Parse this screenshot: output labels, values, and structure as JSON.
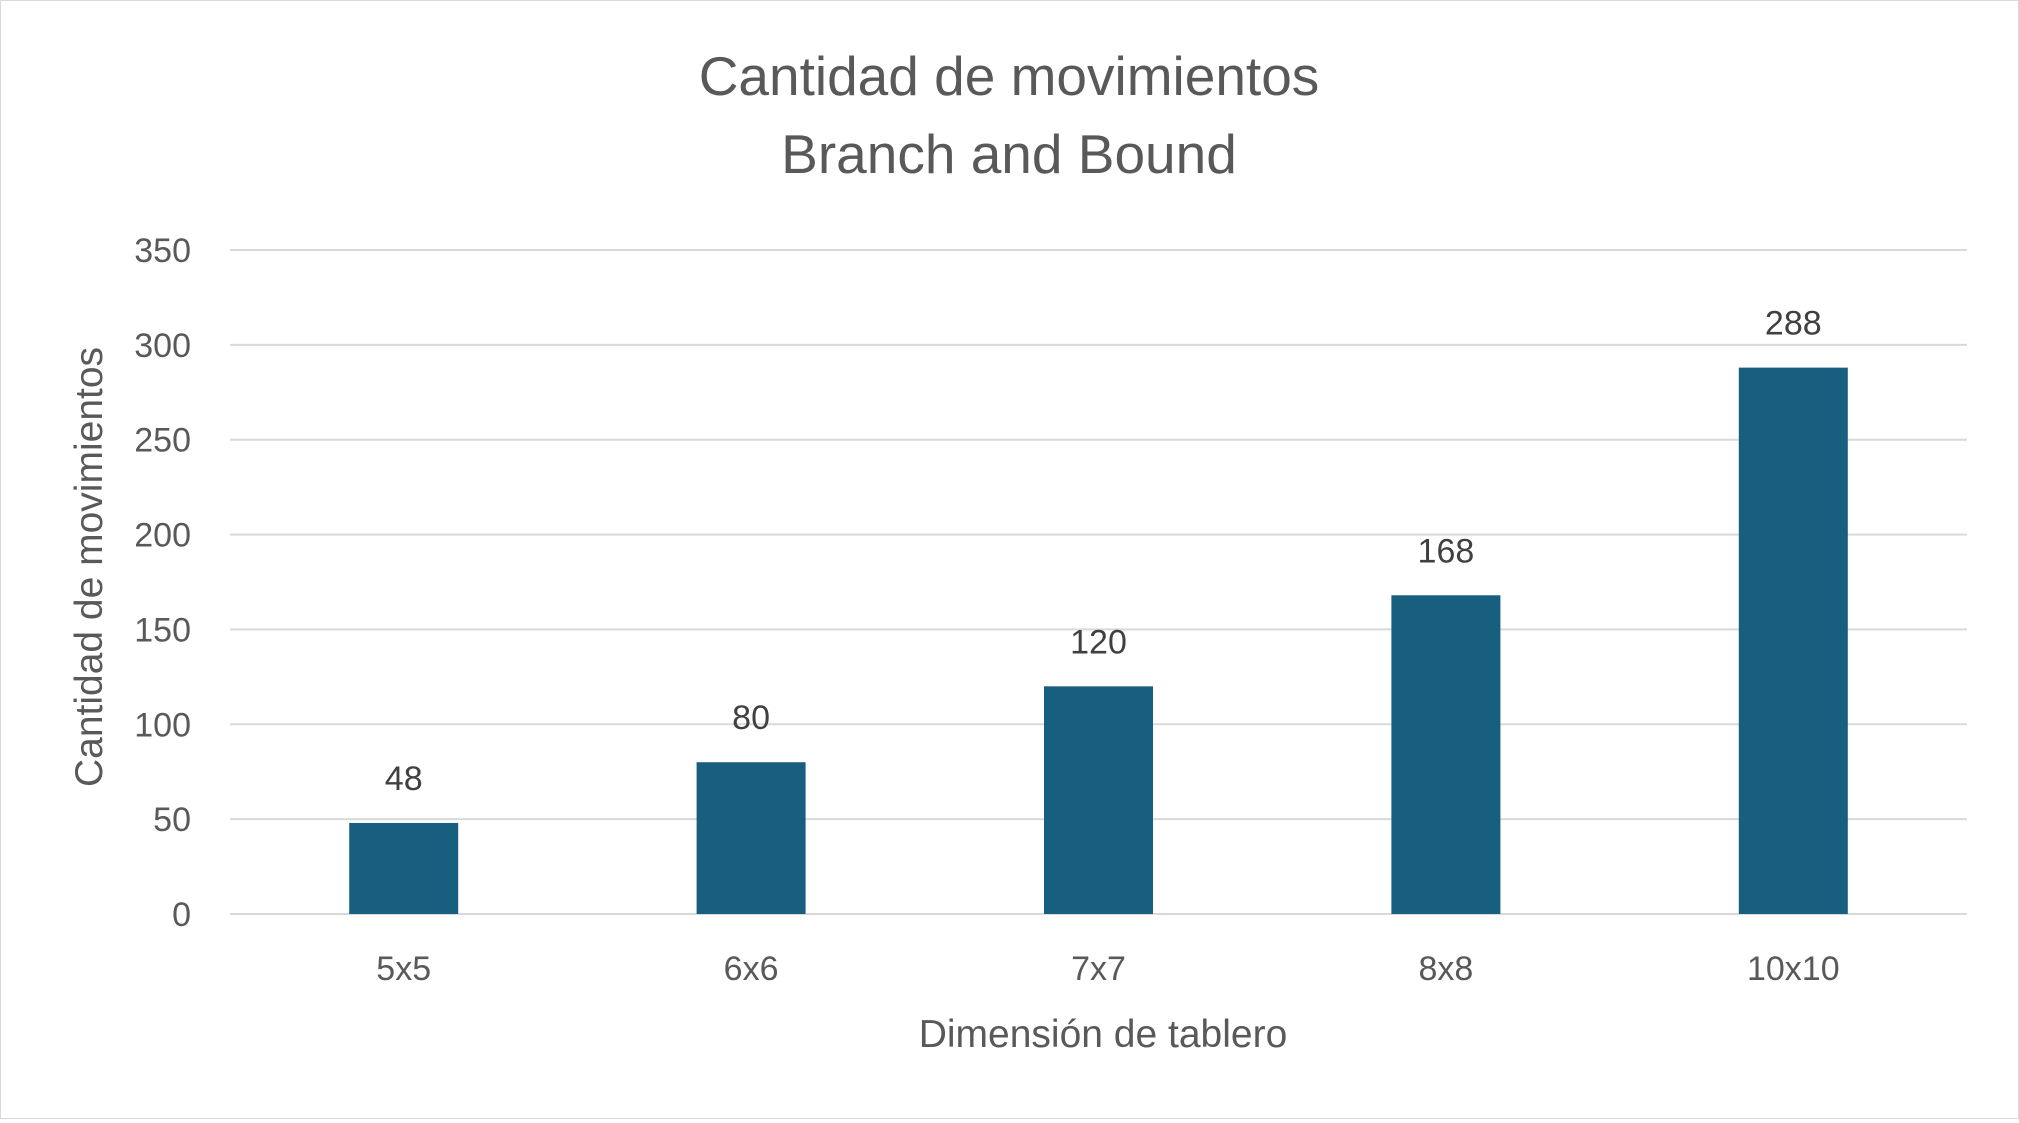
{
  "chart_data": {
    "type": "bar",
    "title": [
      "Cantidad de movimientos",
      "Branch and Bound"
    ],
    "xlabel": "Dimensión de tablero",
    "ylabel": "Cantidad de movimientos",
    "categories": [
      "5x5",
      "6x6",
      "7x7",
      "8x8",
      "10x10"
    ],
    "values": [
      48,
      80,
      120,
      168,
      288
    ],
    "data_labels": [
      "48",
      "80",
      "120",
      "168",
      "288"
    ],
    "ylim": [
      0,
      350
    ],
    "yticks": [
      0,
      50,
      100,
      150,
      200,
      250,
      300,
      350
    ],
    "grid": "horizontal",
    "legend": "none",
    "bar_color": "#175e7f"
  }
}
